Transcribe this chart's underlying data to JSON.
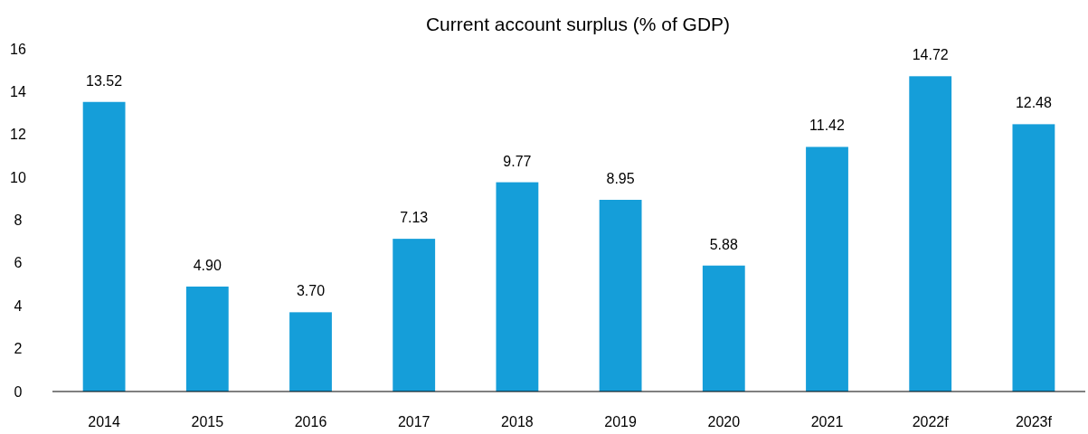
{
  "chart_data": {
    "type": "bar",
    "title": "Current account surplus (% of GDP)",
    "categories": [
      "2014",
      "2015",
      "2016",
      "2017",
      "2018",
      "2019",
      "2020",
      "2021",
      "2022f",
      "2023f"
    ],
    "values": [
      13.52,
      4.9,
      3.7,
      7.13,
      9.77,
      8.95,
      5.88,
      11.42,
      14.72,
      12.48
    ],
    "value_labels": [
      "13.52",
      "4.90",
      "3.70",
      "7.13",
      "9.77",
      "8.95",
      "5.88",
      "11.42",
      "14.72",
      "12.48"
    ],
    "color": "#159ed9",
    "ylim": [
      0,
      16
    ],
    "yticks": [
      0,
      2,
      4,
      6,
      8,
      10,
      12,
      14,
      16
    ],
    "grid": false
  }
}
